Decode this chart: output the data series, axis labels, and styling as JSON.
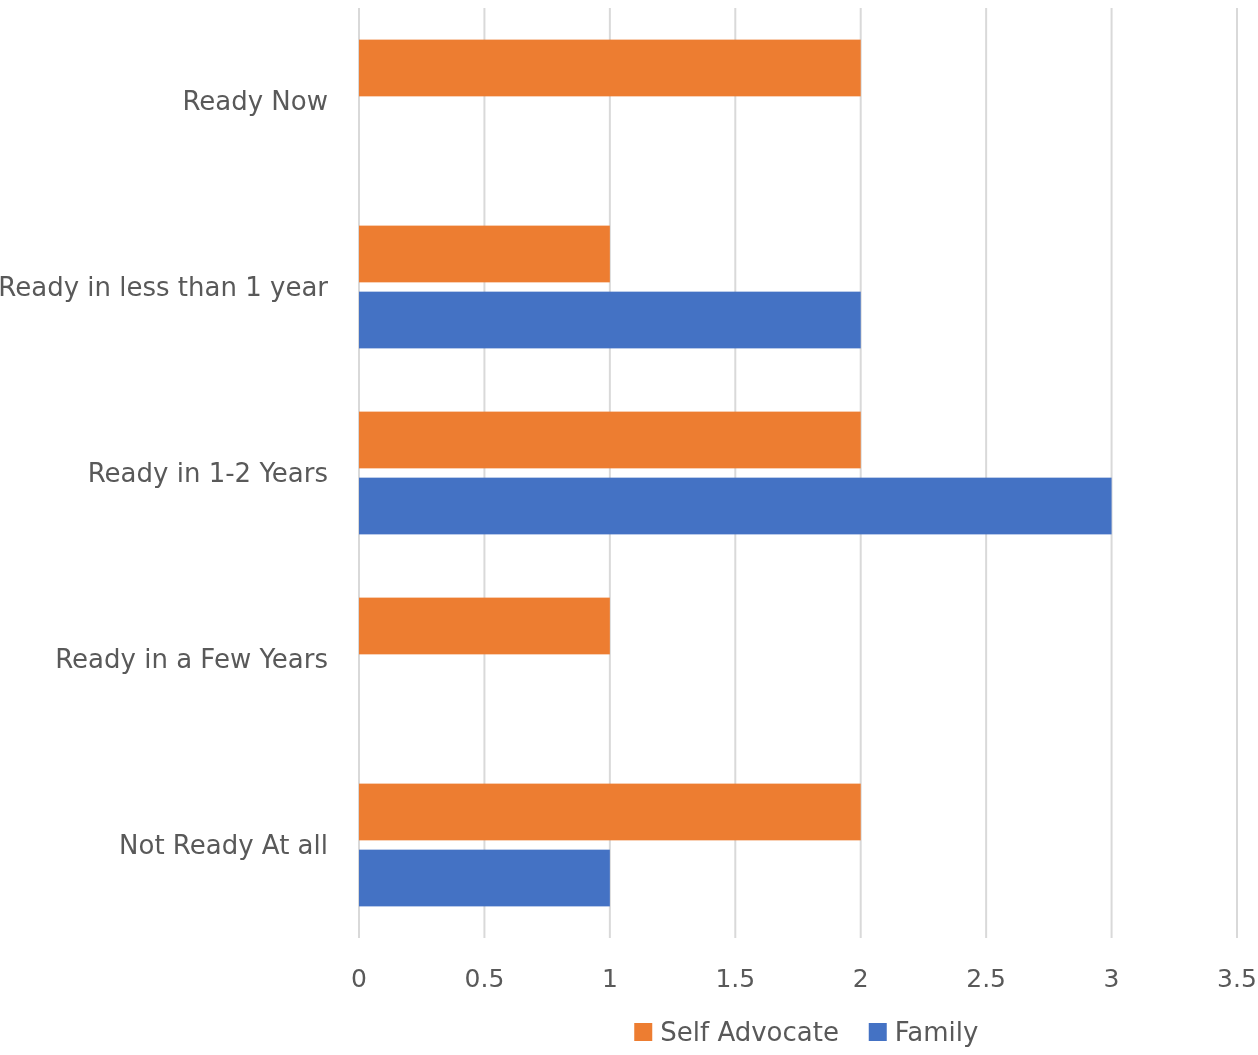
{
  "chart_data": {
    "type": "bar",
    "orientation": "horizontal",
    "categories": [
      "Ready Now",
      "Ready in less than 1 year",
      "Ready in 1-2 Years",
      "Ready in a Few Years",
      "Not Ready At all"
    ],
    "series": [
      {
        "name": "Self Advocate",
        "color": "#ed7d31",
        "values": [
          2,
          1,
          2,
          1,
          2
        ]
      },
      {
        "name": "Family",
        "color": "#4472c4",
        "values": [
          null,
          2,
          3,
          null,
          1
        ]
      }
    ],
    "xlim": [
      0,
      3.5
    ],
    "xticks": [
      0,
      0.5,
      1,
      1.5,
      2,
      2.5,
      3,
      3.5
    ],
    "grid": "x",
    "legend": "bottom"
  }
}
